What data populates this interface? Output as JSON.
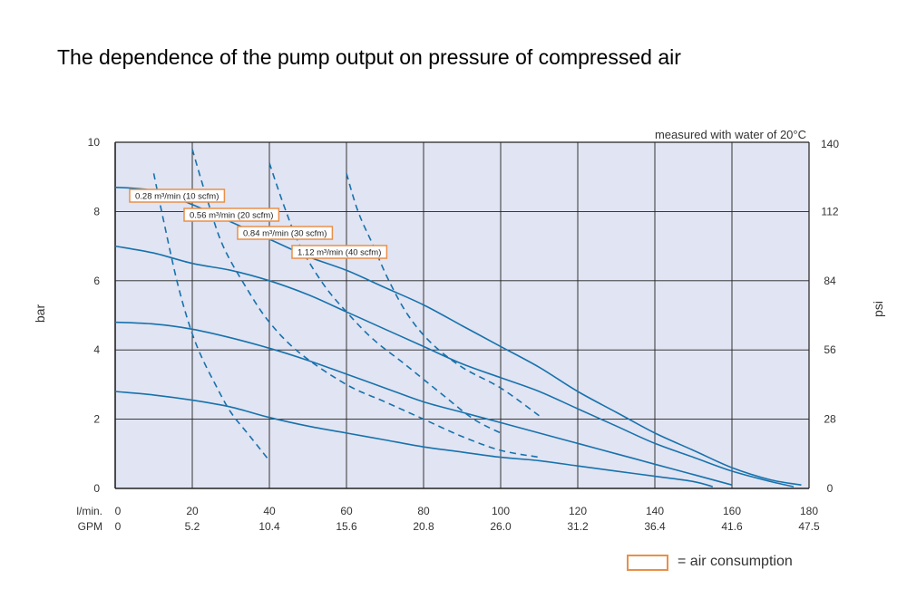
{
  "title": "The dependence of the pump output on pressure of compressed air",
  "note": "measured with water of 20°C",
  "legend": {
    "label": "= air consumption",
    "box_color": "#e8904a"
  },
  "colors": {
    "plot_bg": "#e1e4f2",
    "grid": "#222222",
    "curve": "#1772ad"
  },
  "chart_data": {
    "type": "line",
    "x_axis": {
      "label": "l/min.",
      "range": [
        0,
        180
      ],
      "ticks": [
        0,
        20,
        40,
        60,
        80,
        100,
        120,
        140,
        160,
        180
      ],
      "secondary_label": "GPM",
      "secondary_ticks": [
        "0",
        "5.2",
        "10.4",
        "15.6",
        "20.8",
        "26.0",
        "31.2",
        "36.4",
        "41.6",
        "47.5"
      ]
    },
    "y_axis": {
      "label": "bar",
      "range": [
        0,
        10
      ],
      "ticks": [
        0,
        2,
        4,
        6,
        8,
        10
      ],
      "right_label": "psi",
      "right_ticks": [
        "0",
        "28",
        "56",
        "84",
        "112",
        "140"
      ]
    },
    "grid": true,
    "series": [
      {
        "style": "solid",
        "points": [
          [
            0,
            8.7
          ],
          [
            10,
            8.6
          ],
          [
            20,
            8.2
          ],
          [
            30,
            7.7
          ],
          [
            40,
            7.2
          ],
          [
            50,
            6.7
          ],
          [
            60,
            6.3
          ],
          [
            70,
            5.8
          ],
          [
            80,
            5.3
          ],
          [
            90,
            4.7
          ],
          [
            100,
            4.1
          ],
          [
            110,
            3.5
          ],
          [
            120,
            2.8
          ],
          [
            130,
            2.2
          ],
          [
            140,
            1.6
          ],
          [
            150,
            1.1
          ],
          [
            160,
            0.6
          ],
          [
            170,
            0.25
          ],
          [
            178,
            0.1
          ]
        ]
      },
      {
        "style": "solid",
        "points": [
          [
            0,
            7.0
          ],
          [
            10,
            6.8
          ],
          [
            20,
            6.5
          ],
          [
            30,
            6.3
          ],
          [
            40,
            6.0
          ],
          [
            50,
            5.6
          ],
          [
            60,
            5.1
          ],
          [
            70,
            4.6
          ],
          [
            80,
            4.1
          ],
          [
            90,
            3.6
          ],
          [
            100,
            3.2
          ],
          [
            110,
            2.8
          ],
          [
            120,
            2.3
          ],
          [
            130,
            1.8
          ],
          [
            140,
            1.3
          ],
          [
            150,
            0.9
          ],
          [
            160,
            0.5
          ],
          [
            170,
            0.2
          ],
          [
            176,
            0.05
          ]
        ]
      },
      {
        "style": "solid",
        "points": [
          [
            0,
            4.8
          ],
          [
            10,
            4.75
          ],
          [
            20,
            4.6
          ],
          [
            30,
            4.35
          ],
          [
            40,
            4.05
          ],
          [
            50,
            3.7
          ],
          [
            60,
            3.3
          ],
          [
            70,
            2.9
          ],
          [
            80,
            2.5
          ],
          [
            90,
            2.2
          ],
          [
            100,
            1.9
          ],
          [
            110,
            1.6
          ],
          [
            120,
            1.3
          ],
          [
            130,
            1.0
          ],
          [
            140,
            0.7
          ],
          [
            150,
            0.4
          ],
          [
            160,
            0.1
          ]
        ]
      },
      {
        "style": "solid",
        "points": [
          [
            0,
            2.8
          ],
          [
            10,
            2.7
          ],
          [
            20,
            2.55
          ],
          [
            30,
            2.35
          ],
          [
            40,
            2.05
          ],
          [
            50,
            1.8
          ],
          [
            60,
            1.6
          ],
          [
            70,
            1.4
          ],
          [
            80,
            1.2
          ],
          [
            90,
            1.05
          ],
          [
            100,
            0.9
          ],
          [
            110,
            0.8
          ],
          [
            120,
            0.65
          ],
          [
            130,
            0.5
          ],
          [
            140,
            0.35
          ],
          [
            150,
            0.2
          ],
          [
            155,
            0.05
          ]
        ]
      },
      {
        "name": "0.28 m³/min (10 scfm)",
        "style": "dashed",
        "points": [
          [
            10,
            9.1
          ],
          [
            13,
            7.5
          ],
          [
            16,
            6.0
          ],
          [
            19,
            4.8
          ],
          [
            22,
            3.9
          ],
          [
            26,
            3.0
          ],
          [
            30,
            2.2
          ],
          [
            35,
            1.5
          ],
          [
            40,
            0.8
          ]
        ]
      },
      {
        "name": "0.56 m³/min (20 scfm)",
        "style": "dashed",
        "points": [
          [
            20,
            9.8
          ],
          [
            24,
            8.3
          ],
          [
            28,
            7.0
          ],
          [
            34,
            5.8
          ],
          [
            40,
            4.8
          ],
          [
            48,
            3.9
          ],
          [
            60,
            3.0
          ],
          [
            70,
            2.5
          ],
          [
            80,
            2.0
          ],
          [
            90,
            1.5
          ],
          [
            100,
            1.1
          ],
          [
            110,
            0.9
          ]
        ]
      },
      {
        "name": "0.84 m³/min (30 scfm)",
        "style": "dashed",
        "points": [
          [
            40,
            9.4
          ],
          [
            44,
            8.1
          ],
          [
            48,
            7.0
          ],
          [
            54,
            5.9
          ],
          [
            60,
            5.1
          ],
          [
            67,
            4.3
          ],
          [
            75,
            3.6
          ],
          [
            85,
            2.7
          ],
          [
            93,
            2.0
          ],
          [
            100,
            1.6
          ]
        ]
      },
      {
        "name": "1.12 m³/min (40 scfm)",
        "style": "dashed",
        "points": [
          [
            60,
            9.1
          ],
          [
            63,
            8.0
          ],
          [
            67,
            7.0
          ],
          [
            71,
            6.0
          ],
          [
            76,
            5.0
          ],
          [
            82,
            4.2
          ],
          [
            90,
            3.5
          ],
          [
            100,
            2.9
          ],
          [
            110,
            2.1
          ]
        ]
      }
    ]
  }
}
